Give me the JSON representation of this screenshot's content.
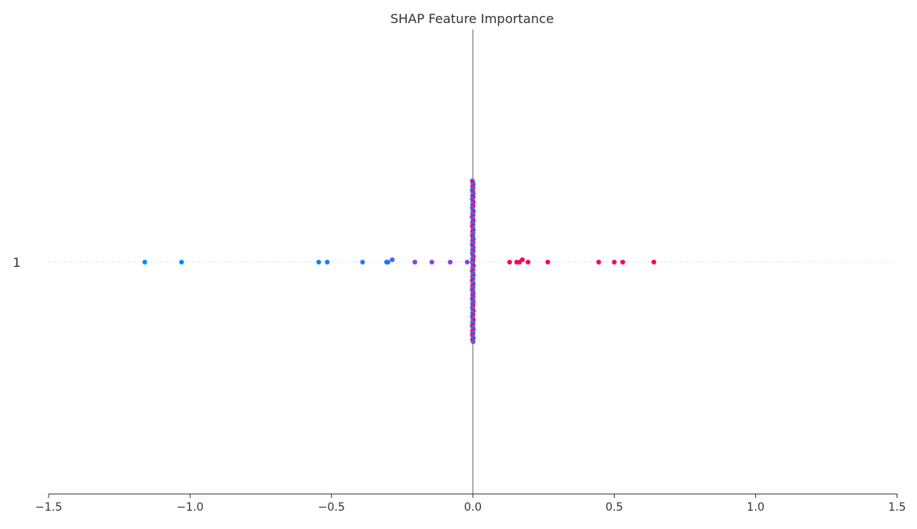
{
  "chart_data": {
    "type": "scatter",
    "title": "SHAP Feature Importance",
    "xlabel": "",
    "ylabel": "",
    "xlim": [
      -1.5,
      1.5
    ],
    "x_ticks": [
      -1.5,
      -1.0,
      -0.5,
      0.0,
      0.5,
      1.0,
      1.5
    ],
    "x_tick_labels": [
      "−1.5",
      "−1.0",
      "−0.5",
      "0.0",
      "0.5",
      "1.0",
      "1.5"
    ],
    "features": [
      "1"
    ],
    "grid": false,
    "colors": {
      "low": "#008bfb",
      "mid": "#8a40df",
      "high": "#ff0052",
      "zero_line": "#999999",
      "row_line": "#cccccc",
      "axis": "#333333"
    },
    "points": [
      {
        "x": -1.16,
        "c": 0.0
      },
      {
        "x": -1.03,
        "c": 0.02
      },
      {
        "x": -0.545,
        "c": 0.05
      },
      {
        "x": -0.515,
        "c": 0.06
      },
      {
        "x": -0.39,
        "c": 0.08
      },
      {
        "x": -0.305,
        "c": 0.1
      },
      {
        "x": -0.3,
        "c": 0.12
      },
      {
        "x": -0.285,
        "c": 0.25
      },
      {
        "x": -0.205,
        "c": 0.45
      },
      {
        "x": -0.145,
        "c": 0.47
      },
      {
        "x": -0.08,
        "c": 0.5
      },
      {
        "x": -0.02,
        "c": 0.5
      },
      {
        "x": 0.13,
        "c": 0.96
      },
      {
        "x": 0.155,
        "c": 0.97
      },
      {
        "x": 0.165,
        "c": 0.97
      },
      {
        "x": 0.175,
        "c": 0.98
      },
      {
        "x": 0.195,
        "c": 0.98
      },
      {
        "x": 0.265,
        "c": 0.98
      },
      {
        "x": 0.445,
        "c": 0.99
      },
      {
        "x": 0.5,
        "c": 0.99
      },
      {
        "x": 0.53,
        "c": 0.99
      },
      {
        "x": 0.64,
        "c": 1.0
      }
    ],
    "zero_cluster": {
      "x": 0.0,
      "count": 90,
      "note": "dense band of overlapping points at SHAP value 0"
    }
  }
}
